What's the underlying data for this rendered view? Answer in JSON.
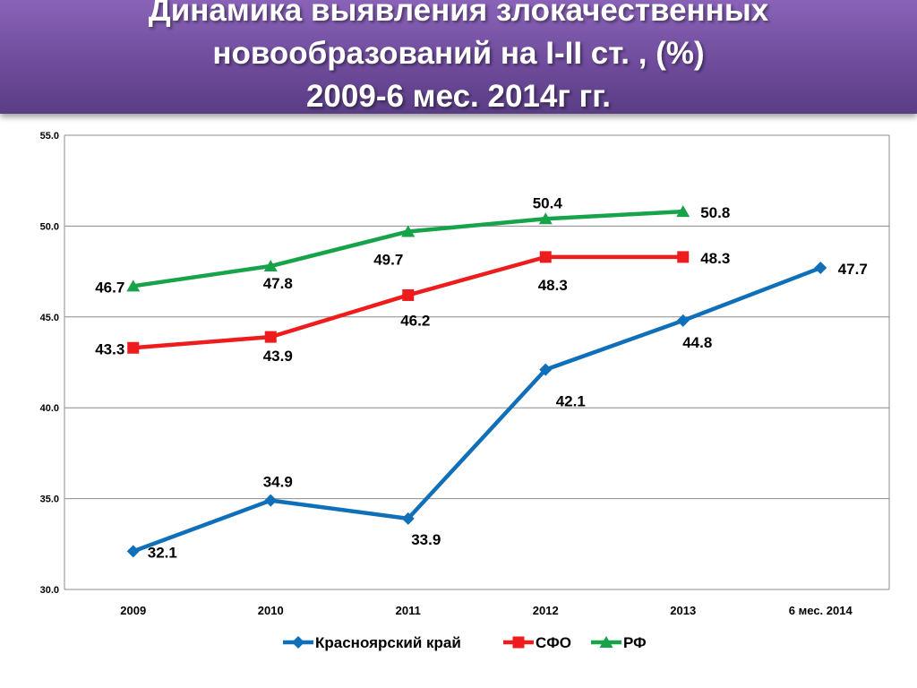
{
  "slide": {
    "title_lines": [
      "Динамика выявления злокачественных",
      "новообразований на I-II ст. , (%)",
      "2009-6 мес. 2014г гг."
    ]
  },
  "chart_data": {
    "type": "line",
    "categories": [
      "2009",
      "2010",
      "2011",
      "2012",
      "2013",
      "6 мес. 2014"
    ],
    "ylim": [
      30.0,
      55.0
    ],
    "yticks": [
      "30.0",
      "35.0",
      "40.0",
      "45.0",
      "50.0",
      "55.0"
    ],
    "grid": true,
    "legend_position": "bottom",
    "series": [
      {
        "name": "Красноярский край",
        "color": "#0f6fb8",
        "marker": "diamond",
        "values": [
          32.1,
          34.9,
          33.9,
          42.1,
          44.8,
          47.7
        ],
        "labels": [
          "32.1",
          "34.9",
          "33.9",
          "42.1",
          "44.8",
          "47.7"
        ]
      },
      {
        "name": "СФО",
        "color": "#ee1c1c",
        "marker": "square",
        "values": [
          43.3,
          43.9,
          46.2,
          48.3,
          48.3,
          null
        ],
        "labels": [
          "43.3",
          "43.9",
          "46.2",
          "48.3",
          "48.3",
          null
        ]
      },
      {
        "name": "РФ",
        "color": "#16a34a",
        "marker": "triangle",
        "values": [
          46.7,
          47.8,
          49.7,
          50.4,
          50.8,
          null
        ],
        "labels": [
          "46.7",
          "47.8",
          "49.7",
          "50.4",
          "50.8",
          null
        ]
      }
    ]
  }
}
